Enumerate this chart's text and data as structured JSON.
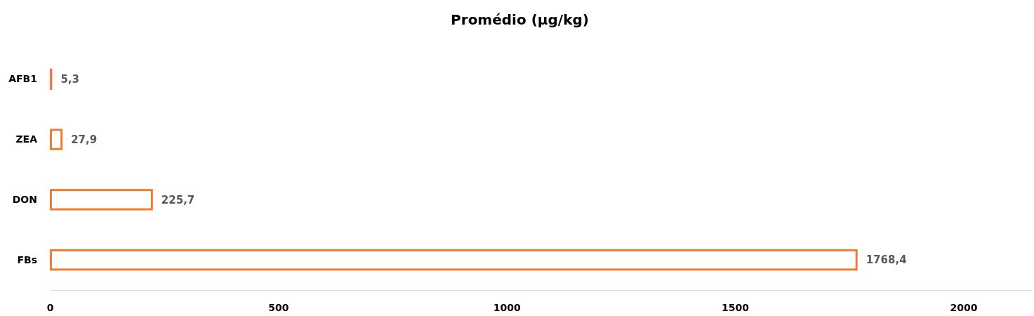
{
  "chart_data": {
    "type": "bar",
    "orientation": "horizontal",
    "title": "Promédio (µg/kg)",
    "categories": [
      "AFB1",
      "ZEA",
      "DON",
      "FBs"
    ],
    "values": [
      5.3,
      27.9,
      225.7,
      1768.4
    ],
    "value_labels": [
      "5,3",
      "27,9",
      "225,7",
      "1768,4"
    ],
    "color": "#ed7d31",
    "xlim": [
      0,
      2150
    ],
    "xticks": [
      0,
      500,
      1000,
      1500,
      2000
    ],
    "grid": false
  }
}
